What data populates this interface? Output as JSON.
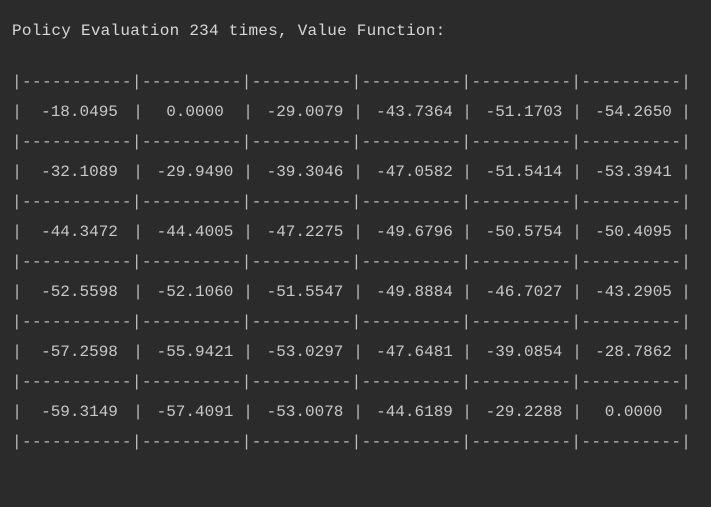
{
  "header": {
    "text": "Policy Evaluation 234 times, Value Function:"
  },
  "table": {
    "separator": "|-----------|----------|----------|----------|----------|----------|",
    "bar": "|",
    "rows": [
      [
        "-18.0495",
        "0.0000",
        "-29.0079",
        "-43.7364",
        "-51.1703",
        "-54.2650"
      ],
      [
        "-32.1089",
        "-29.9490",
        "-39.3046",
        "-47.0582",
        "-51.5414",
        "-53.3941"
      ],
      [
        "-44.3472",
        "-44.4005",
        "-47.2275",
        "-49.6796",
        "-50.5754",
        "-50.4095"
      ],
      [
        "-52.5598",
        "-52.1060",
        "-51.5547",
        "-49.8884",
        "-46.7027",
        "-43.2905"
      ],
      [
        "-57.2598",
        "-55.9421",
        "-53.0297",
        "-47.6481",
        "-39.0854",
        "-28.7862"
      ],
      [
        "-59.3149",
        "-57.4091",
        "-53.0078",
        "-44.6189",
        "-29.2288",
        "0.0000"
      ]
    ]
  }
}
